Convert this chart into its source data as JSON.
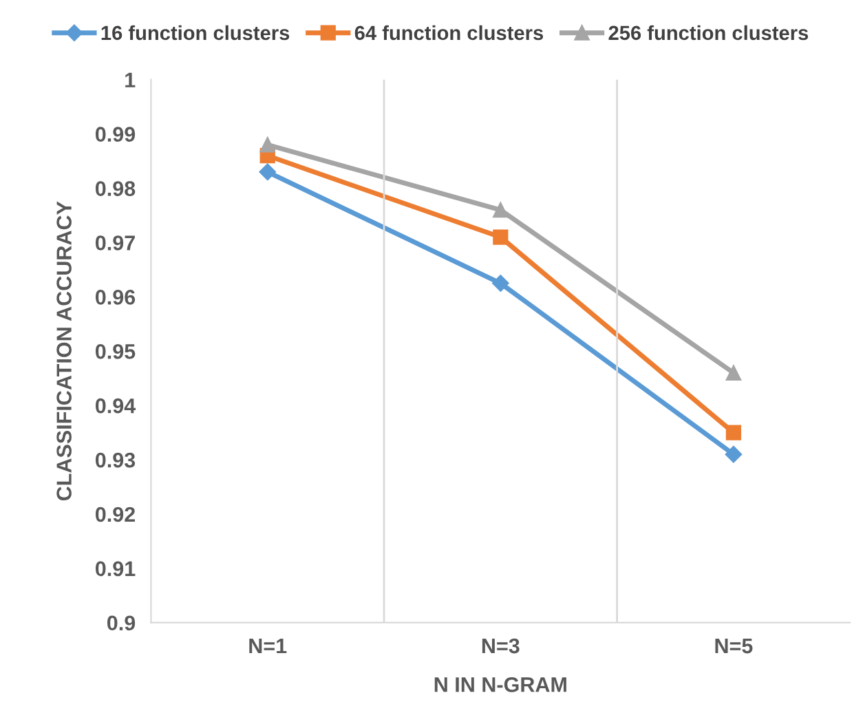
{
  "chart_data": {
    "type": "line",
    "xlabel": "N IN N-GRAM",
    "ylabel": "CLASSIFICATION ACCURACY",
    "categories": [
      "N=1",
      "N=3",
      "N=5"
    ],
    "series": [
      {
        "name": "16 function clusters",
        "color": "#5b9bd5",
        "marker": "diamond",
        "values": [
          0.983,
          0.9625,
          0.931
        ]
      },
      {
        "name": "64 function clusters",
        "color": "#ed7d31",
        "marker": "square",
        "values": [
          0.986,
          0.971,
          0.935
        ]
      },
      {
        "name": "256 function clusters",
        "color": "#a5a5a5",
        "marker": "triangle",
        "values": [
          0.988,
          0.976,
          0.946
        ]
      }
    ],
    "ylim": [
      0.9,
      1
    ],
    "yticks": [
      0.9,
      0.91,
      0.92,
      0.93,
      0.94,
      0.95,
      0.96,
      0.97,
      0.98,
      0.99,
      1
    ],
    "grid": "x",
    "legend": "top"
  }
}
